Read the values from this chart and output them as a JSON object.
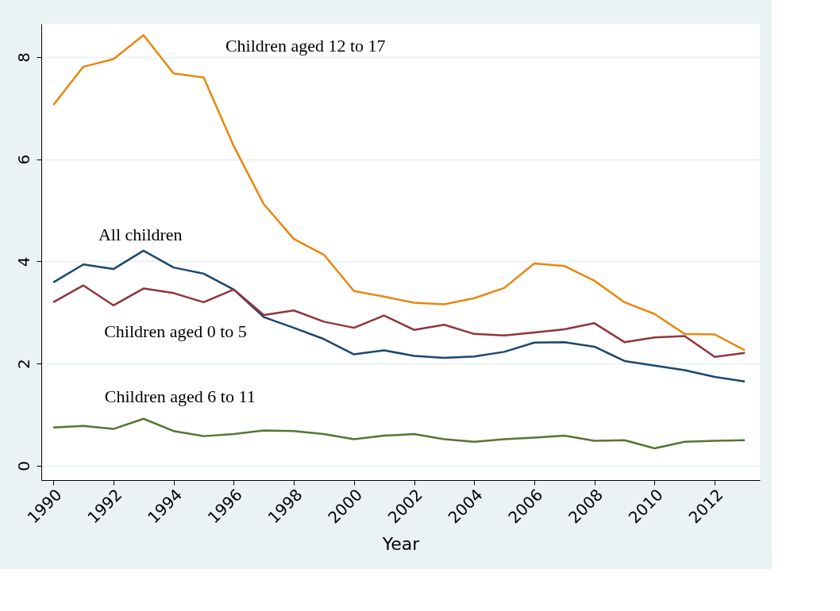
{
  "chart_data": {
    "type": "line",
    "xlabel": "Year",
    "x": [
      1990,
      1991,
      1992,
      1993,
      1994,
      1995,
      1996,
      1997,
      1998,
      1999,
      2000,
      2001,
      2002,
      2003,
      2004,
      2005,
      2006,
      2007,
      2008,
      2009,
      2010,
      2011,
      2012,
      2013
    ],
    "series": [
      {
        "name": "Children aged 12 to 17",
        "color": "#e8870e",
        "values": [
          7.06,
          7.81,
          7.96,
          8.43,
          7.68,
          7.6,
          6.26,
          5.12,
          4.44,
          4.13,
          3.42,
          3.31,
          3.19,
          3.16,
          3.28,
          3.48,
          3.96,
          3.91,
          3.62,
          3.2,
          2.97,
          2.58,
          2.57,
          2.26
        ]
      },
      {
        "name": "All children",
        "color": "#1a476f",
        "values": [
          3.59,
          3.94,
          3.85,
          4.21,
          3.88,
          3.76,
          3.45,
          2.91,
          2.7,
          2.48,
          2.18,
          2.26,
          2.15,
          2.11,
          2.14,
          2.23,
          2.41,
          2.42,
          2.33,
          2.05,
          1.96,
          1.87,
          1.74,
          1.65
        ]
      },
      {
        "name": "Children aged 0 to 5",
        "color": "#90353b",
        "values": [
          3.2,
          3.53,
          3.14,
          3.47,
          3.38,
          3.2,
          3.45,
          2.95,
          3.04,
          2.82,
          2.7,
          2.94,
          2.66,
          2.76,
          2.58,
          2.55,
          2.61,
          2.67,
          2.79,
          2.42,
          2.51,
          2.54,
          2.13,
          2.21
        ]
      },
      {
        "name": "Children aged 6 to 11",
        "color": "#55752f",
        "values": [
          0.75,
          0.78,
          0.72,
          0.92,
          0.68,
          0.58,
          0.62,
          0.69,
          0.68,
          0.62,
          0.52,
          0.59,
          0.62,
          0.52,
          0.47,
          0.52,
          0.55,
          0.59,
          0.49,
          0.5,
          0.34,
          0.47,
          0.49,
          0.5
        ]
      }
    ],
    "xlim": [
      1989.6,
      2013.5
    ],
    "xticks": [
      1990,
      1992,
      1994,
      1996,
      1998,
      2000,
      2002,
      2004,
      2006,
      2008,
      2010,
      2012
    ],
    "ylim": [
      -0.28,
      8.65
    ],
    "yticks": [
      0,
      2,
      4,
      6,
      8
    ],
    "grid": "y",
    "marker": "none",
    "line_style": "solid"
  }
}
